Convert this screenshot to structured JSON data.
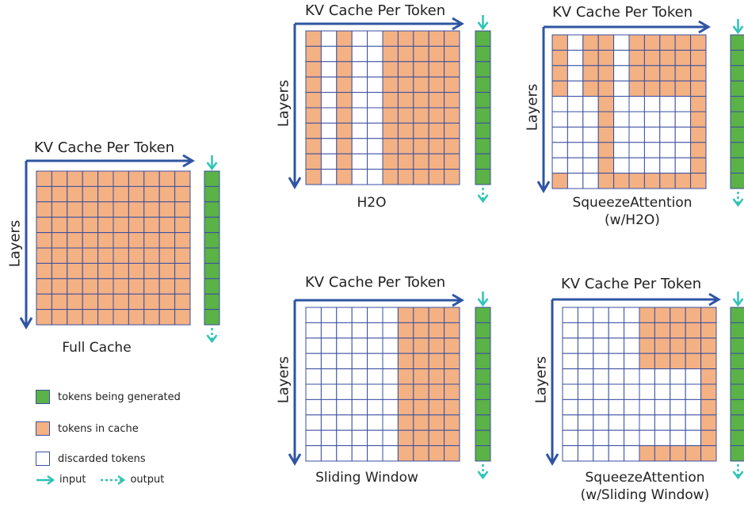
{
  "colors": {
    "kept": "#F4B183",
    "discarded": "#FFFFFF",
    "generated": "#5BB246",
    "grid_line": "#3A4FA0",
    "axis": "#2F54A3",
    "io_arrow": "#2EC4B6"
  },
  "axis_labels": {
    "token_axis": "KV Cache Per Token",
    "layer_axis": "Layers"
  },
  "panels": [
    {
      "id": "full-cache",
      "caption": [
        "Full Cache"
      ],
      "mask": [
        "1111111111",
        "1111111111",
        "1111111111",
        "1111111111",
        "1111111111",
        "1111111111",
        "1111111111",
        "1111111111",
        "1111111111",
        "1111111111"
      ]
    },
    {
      "id": "h2o",
      "caption": [
        "H2O"
      ],
      "mask": [
        "1010011111",
        "1010011111",
        "1010011111",
        "1010011111",
        "1010011111",
        "1010011111",
        "1010011111",
        "1010011111",
        "1010011111",
        "1010011111"
      ]
    },
    {
      "id": "squeeze-h2o",
      "caption": [
        "SqueezeAttention",
        "(w/H2O)"
      ],
      "mask": [
        "1011011111",
        "1011011111",
        "1011011111",
        "1011011111",
        "0001000001",
        "0001000001",
        "0001000001",
        "0001000001",
        "0001000001",
        "1001111111"
      ]
    },
    {
      "id": "sliding-window",
      "caption": [
        "Sliding Window"
      ],
      "mask": [
        "0000001111",
        "0000001111",
        "0000001111",
        "0000001111",
        "0000001111",
        "0000001111",
        "0000001111",
        "0000001111",
        "0000001111",
        "0000001111"
      ]
    },
    {
      "id": "squeeze-sliding",
      "caption": [
        "SqueezeAttention",
        "(w/Sliding Window)"
      ],
      "mask": [
        "0000011111",
        "0000011111",
        "0000011111",
        "0000011111",
        "0000000001",
        "0000000001",
        "0000000001",
        "0000000001",
        "0000000001",
        "0000011111"
      ]
    }
  ],
  "legend": [
    {
      "icon": "green-square-icon",
      "label": "tokens being generated"
    },
    {
      "icon": "orange-square-icon",
      "label": "tokens in cache"
    },
    {
      "icon": "white-square-icon",
      "label": "discarded tokens"
    }
  ],
  "io_legend": {
    "input": "input",
    "output": "output"
  }
}
